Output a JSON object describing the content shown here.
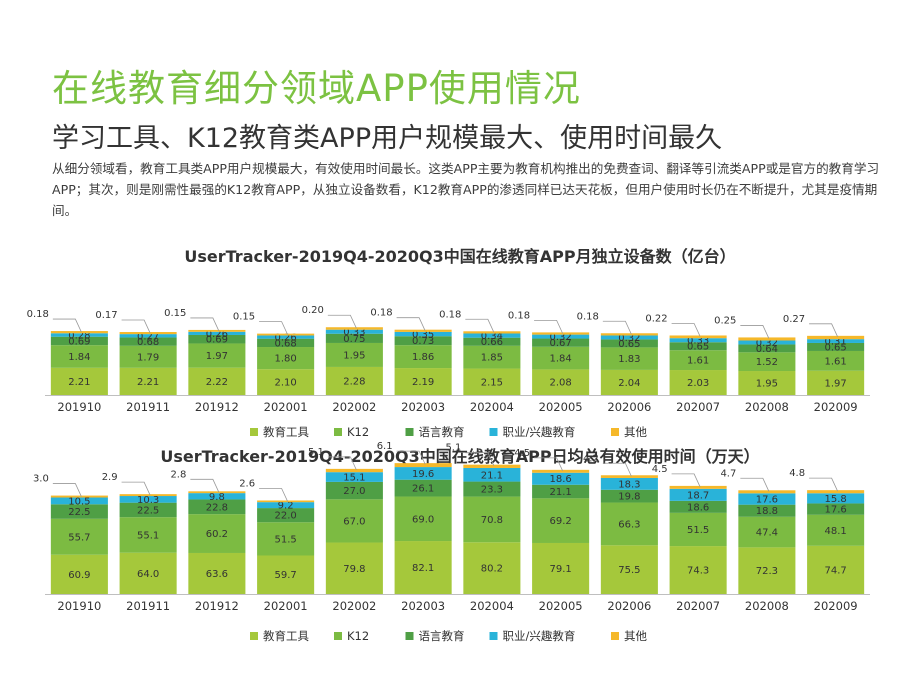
{
  "page": {
    "title": "在线教育细分领域APP使用情况",
    "subtitle": "学习工具、K12教育类APP用户规模最大、使用时间最久",
    "description": "从细分领域看，教育工具类APP用户规模最大，有效使用时间最长。这类APP主要为教育机构推出的免费查词、翻译等引流类APP或是官方的教育学习APP；其次，则是刚需性最强的K12教育APP，从独立设备数看，K12教育APP的渗透同样已达天花板，但用户使用时长仍在不断提升，尤其是疫情期间。"
  },
  "colors": {
    "教育工具": "#a5c83b",
    "K12": "#7cbb42",
    "语言教育": "#4f9f45",
    "职业/兴趣教育": "#29b3d9",
    "其他": "#f5b82a",
    "title": "#7cc242"
  },
  "chart_data": [
    {
      "type": "bar",
      "stacked": true,
      "title": "UserTracker-2019Q4-2020Q3中国在线教育APP月独立设备数（亿台）",
      "categories": [
        "201910",
        "201911",
        "201912",
        "202001",
        "202002",
        "202003",
        "202004",
        "202005",
        "202006",
        "202007",
        "202008",
        "202009"
      ],
      "series": [
        {
          "name": "教育工具",
          "values": [
            2.21,
            2.21,
            2.22,
            2.1,
            2.28,
            2.19,
            2.15,
            2.08,
            2.04,
            2.03,
            1.95,
            1.97
          ]
        },
        {
          "name": "K12",
          "values": [
            1.84,
            1.79,
            1.97,
            1.8,
            1.95,
            1.86,
            1.85,
            1.84,
            1.83,
            1.61,
            1.52,
            1.61
          ]
        },
        {
          "name": "语言教育",
          "values": [
            0.69,
            0.68,
            0.69,
            0.68,
            0.75,
            0.73,
            0.66,
            0.67,
            0.65,
            0.65,
            0.64,
            0.65
          ]
        },
        {
          "name": "职业/兴趣教育",
          "values": [
            0.28,
            0.27,
            0.26,
            0.26,
            0.33,
            0.35,
            0.34,
            0.32,
            0.32,
            0.33,
            0.32,
            0.31
          ]
        },
        {
          "name": "其他",
          "values": [
            0.18,
            0.17,
            0.15,
            0.15,
            0.2,
            0.18,
            0.18,
            0.18,
            0.18,
            0.22,
            0.25,
            0.27
          ]
        }
      ],
      "legend": "bottom"
    },
    {
      "type": "bar",
      "stacked": true,
      "title": "UserTracker-2019Q4-2020Q3中国在线教育APP日均总有效使用时间（万天）",
      "categories": [
        "201910",
        "201911",
        "201912",
        "202001",
        "202002",
        "202003",
        "202004",
        "202005",
        "202006",
        "202007",
        "202008",
        "202009"
      ],
      "series": [
        {
          "name": "教育工具",
          "values": [
            60.9,
            64.0,
            63.6,
            59.7,
            79.8,
            82.1,
            80.2,
            79.1,
            75.5,
            74.3,
            72.3,
            74.7
          ]
        },
        {
          "name": "K12",
          "values": [
            55.7,
            55.1,
            60.2,
            51.5,
            67.0,
            69.0,
            70.8,
            69.2,
            66.3,
            51.5,
            47.4,
            48.1
          ]
        },
        {
          "name": "语言教育",
          "values": [
            22.5,
            22.5,
            22.8,
            22.0,
            27.0,
            26.1,
            23.3,
            21.1,
            19.8,
            18.6,
            18.8,
            17.6
          ]
        },
        {
          "name": "职业/兴趣教育",
          "values": [
            10.5,
            10.3,
            9.8,
            9.2,
            15.1,
            19.6,
            21.1,
            18.6,
            18.3,
            18.7,
            17.6,
            15.8
          ]
        },
        {
          "name": "其他",
          "values": [
            3.0,
            2.9,
            2.8,
            2.6,
            5.1,
            6.1,
            5.1,
            4.5,
            4.2,
            4.5,
            4.7,
            4.8
          ]
        }
      ],
      "legend": "bottom"
    }
  ]
}
